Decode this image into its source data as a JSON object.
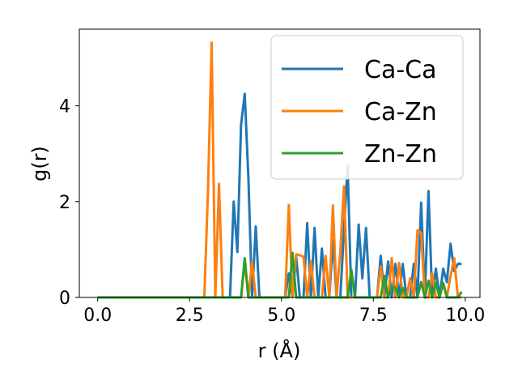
{
  "chart_data": {
    "type": "line",
    "title": "",
    "xlabel": "r (Å)",
    "ylabel": "g(r)",
    "xlim": [
      -0.5,
      10.4
    ],
    "ylim": [
      0,
      5.6
    ],
    "xticks": [
      {
        "value": 0.0,
        "label": "0.0"
      },
      {
        "value": 2.5,
        "label": "2.5"
      },
      {
        "value": 5.0,
        "label": "5.0"
      },
      {
        "value": 7.5,
        "label": "7.5"
      },
      {
        "value": 10.0,
        "label": "10.0"
      }
    ],
    "yticks": [
      {
        "value": 0,
        "label": "0"
      },
      {
        "value": 2,
        "label": "2"
      },
      {
        "value": 4,
        "label": "4"
      }
    ],
    "grid": false,
    "legend": "upper right",
    "series": [
      {
        "name": "Ca-Ca",
        "color": "#1f77b4",
        "x": [
          0.0,
          3.4,
          3.5,
          3.6,
          3.7,
          3.8,
          3.9,
          4.0,
          4.1,
          4.2,
          4.3,
          4.4,
          4.5,
          5.1,
          5.2,
          5.3,
          5.4,
          5.5,
          5.6,
          5.7,
          5.8,
          5.9,
          6.0,
          6.1,
          6.2,
          6.3,
          6.4,
          6.5,
          6.6,
          6.7,
          6.8,
          6.9,
          7.0,
          7.1,
          7.2,
          7.3,
          7.4,
          7.5,
          7.6,
          7.7,
          7.8,
          7.9,
          8.0,
          8.1,
          8.2,
          8.3,
          8.4,
          8.5,
          8.6,
          8.7,
          8.8,
          8.9,
          9.0,
          9.1,
          9.2,
          9.3,
          9.4,
          9.5,
          9.6,
          9.7,
          9.8,
          9.9
        ],
        "y": [
          0,
          0,
          0,
          0,
          2.0,
          0.95,
          3.6,
          4.25,
          2.5,
          0,
          1.48,
          0,
          0,
          0,
          0.5,
          0,
          0.85,
          0,
          0,
          1.55,
          0,
          1.45,
          0,
          1.02,
          0,
          0,
          1.2,
          0,
          0,
          1.4,
          2.75,
          0,
          0,
          1.52,
          0.4,
          1.45,
          0,
          0,
          0,
          0.87,
          0,
          0.75,
          0,
          0.7,
          0,
          0.7,
          0,
          0,
          0.7,
          0,
          1.98,
          0,
          2.22,
          0,
          0.6,
          0,
          0.6,
          0.32,
          1.12,
          0.55,
          0.7,
          0.7
        ]
      },
      {
        "name": "Ca-Zn",
        "color": "#ff7f0e",
        "x": [
          0.0,
          2.9,
          3.0,
          3.1,
          3.2,
          3.3,
          3.4,
          3.9,
          4.0,
          4.1,
          4.2,
          4.3,
          5.0,
          5.1,
          5.2,
          5.3,
          5.4,
          5.5,
          5.6,
          5.7,
          5.8,
          5.9,
          6.0,
          6.1,
          6.2,
          6.3,
          6.4,
          6.5,
          6.6,
          6.7,
          6.8,
          6.9,
          7.0,
          7.1,
          7.2,
          7.3,
          7.4,
          7.5,
          7.6,
          7.7,
          7.8,
          7.9,
          8.0,
          8.1,
          8.2,
          8.3,
          8.4,
          8.5,
          8.6,
          8.7,
          8.8,
          8.9,
          9.0,
          9.1,
          9.2,
          9.3,
          9.4,
          9.5,
          9.6,
          9.7,
          9.8,
          9.9
        ],
        "y": [
          0,
          0,
          2.2,
          5.32,
          0,
          2.37,
          0,
          0,
          0.75,
          0,
          0.75,
          0,
          0,
          0,
          1.93,
          0,
          0.9,
          0.88,
          0.85,
          0,
          0.75,
          0,
          0,
          0,
          0.87,
          0,
          1.92,
          0,
          0.95,
          2.32,
          0,
          0,
          0,
          0,
          0,
          0,
          0,
          0,
          0,
          0.65,
          0,
          0,
          0.82,
          0,
          0.72,
          0,
          0,
          0.4,
          0,
          1.4,
          1.35,
          0,
          0,
          0.5,
          0,
          0,
          0.3,
          0,
          0.45,
          0.82,
          0,
          0
        ]
      },
      {
        "name": "Zn-Zn",
        "color": "#2ca02c",
        "x": [
          0.0,
          3.9,
          4.0,
          4.1,
          5.2,
          5.3,
          5.4,
          5.5,
          6.7,
          6.8,
          6.9,
          7.0,
          7.7,
          7.8,
          7.9,
          8.0,
          8.1,
          8.2,
          8.3,
          8.4,
          8.7,
          8.8,
          8.9,
          9.0,
          9.1,
          9.2,
          9.3,
          9.4,
          9.5,
          9.6,
          9.7,
          9.8,
          9.9
        ],
        "y": [
          0,
          0,
          0.82,
          0,
          0,
          0.93,
          0,
          0,
          0,
          0,
          0.58,
          0,
          0,
          0.45,
          0,
          0.22,
          0.2,
          0,
          0.2,
          0,
          0,
          0.32,
          0,
          0.35,
          0,
          0.3,
          0,
          0.3,
          0,
          0,
          0,
          0,
          0.12
        ]
      }
    ]
  }
}
